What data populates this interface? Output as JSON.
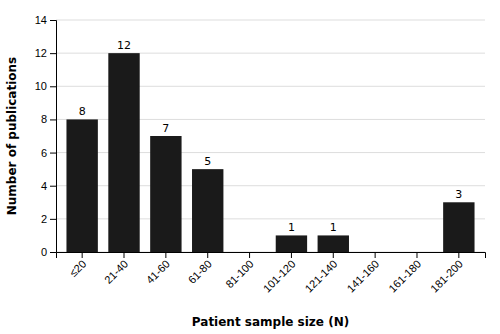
{
  "chart_data": {
    "type": "bar",
    "categories": [
      "≤20",
      "21-40",
      "41-60",
      "61-80",
      "81-100",
      "101-120",
      "121-140",
      "141-160",
      "161-180",
      "181-200"
    ],
    "values": [
      8,
      12,
      7,
      5,
      0,
      1,
      1,
      0,
      0,
      3
    ],
    "value_labels": [
      "8",
      "12",
      "7",
      "5",
      null,
      "1",
      "1",
      null,
      null,
      "3"
    ],
    "data_labels": true,
    "color": "#1a1a1a",
    "xlabel": "Patient sample size (N)",
    "ylabel": "Number of publications",
    "ylim": [
      0,
      14
    ],
    "yticks": [
      0,
      2,
      4,
      6,
      8,
      10,
      12,
      14
    ],
    "grid": true
  }
}
